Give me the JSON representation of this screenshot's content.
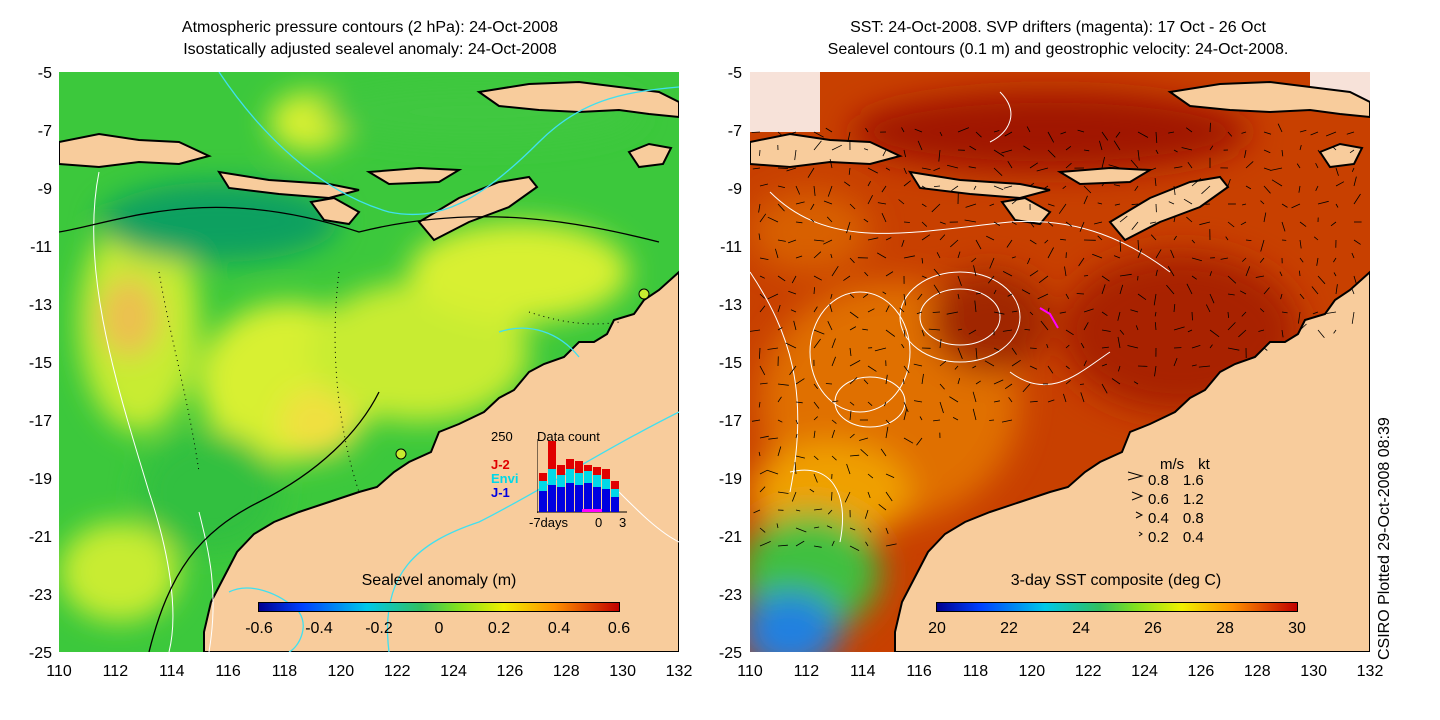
{
  "left": {
    "title_line1": "Atmospheric pressure contours (2 hPa): 24-Oct-2008",
    "title_line2": "Isostatically adjusted sealevel anomaly: 24-Oct-2008",
    "colorbar_title": "Sealevel anomaly (m)",
    "colorbar_ticks": [
      "-0.6",
      "-0.4",
      "-0.2",
      "0",
      "0.2",
      "0.4",
      "0.6"
    ],
    "inset": {
      "max_label": "250",
      "title": "Data count",
      "series": [
        {
          "name": "J-2",
          "color": "#e00000"
        },
        {
          "name": "Envi",
          "color": "#00d8e8"
        },
        {
          "name": "J-1",
          "color": "#0000e0"
        }
      ],
      "x_labels": [
        "-7days",
        "0",
        "3"
      ]
    }
  },
  "right": {
    "title_line1": "SST: 24-Oct-2008. SVP drifters (magenta): 17 Oct - 26 Oct",
    "title_line2": "Sealevel contours (0.1 m) and geostrophic velocity: 24-Oct-2008.",
    "colorbar_title": "3-day SST composite (deg C)",
    "colorbar_ticks": [
      "20",
      "22",
      "24",
      "26",
      "28",
      "30"
    ],
    "velocity_legend": {
      "header_ms": "m/s",
      "header_kt": "kt",
      "rows": [
        {
          "ms": "0.8",
          "kt": "1.6"
        },
        {
          "ms": "0.6",
          "kt": "1.2"
        },
        {
          "ms": "0.4",
          "kt": "0.8"
        },
        {
          "ms": "0.2",
          "kt": "0.4"
        }
      ]
    }
  },
  "axes": {
    "y_ticks": [
      "-5",
      "-7",
      "-9",
      "-11",
      "-13",
      "-15",
      "-17",
      "-19",
      "-21",
      "-23",
      "-25"
    ],
    "x_ticks": [
      "110",
      "112",
      "114",
      "116",
      "118",
      "120",
      "122",
      "124",
      "126",
      "128",
      "130",
      "132"
    ]
  },
  "credit": "CSIRO Plotted 29-Oct-2008 08:39",
  "colors": {
    "land": "#f8cc9c",
    "sla_mid": "#44cc44",
    "sst_warm": "#c02000"
  }
}
